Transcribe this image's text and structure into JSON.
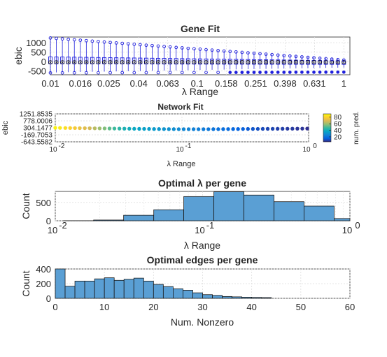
{
  "chart_data": [
    {
      "id": "gene_fit",
      "type": "box",
      "title": "Gene Fit",
      "xlabel": "λ Range",
      "ylabel": "ebic",
      "x_scale": "log",
      "xlim": [
        0.01,
        1.1
      ],
      "ylim": [
        -700,
        1300
      ],
      "x_ticks": [
        0.01,
        0.016,
        0.025,
        0.04,
        0.063,
        0.1,
        0.158,
        0.251,
        0.398,
        0.631,
        1
      ],
      "x_tick_labels": [
        "0.01",
        "0.016",
        "0.025",
        "0.04",
        "0.063",
        "0.1",
        "0.158",
        "0.251",
        "0.398",
        "0.631",
        "1"
      ],
      "y_ticks": [
        -500,
        0,
        500,
        1000
      ],
      "y_tick_labels": [
        "-500",
        "0",
        "500",
        "1000"
      ],
      "n_boxes": 50,
      "box_color": "#1f1fdc",
      "lambda_start": 0.01,
      "lambda_end": 1.0,
      "median_start": -40,
      "median_end": -30,
      "q1_start": -120,
      "q1_end": -150,
      "q3_start": 250,
      "q3_end": 40,
      "whisker_low_start": -580,
      "whisker_low_end": -320,
      "whisker_high_start": 1200,
      "whisker_high_end": 130,
      "outlier_high_start": 1250,
      "outlier_high_end": 80,
      "outlier_low_start": -600,
      "outlier_low_end": -560
    },
    {
      "id": "network_fit",
      "type": "scatter",
      "title": "Network Fit",
      "xlabel": "λ Range",
      "ylabel": "ebic",
      "x_scale": "log",
      "xlim": [
        0.01,
        1
      ],
      "ylim": [
        -643.5582,
        1251.8535
      ],
      "x_ticks": [
        0.01,
        0.1,
        1
      ],
      "x_tick_labels": [
        "10",
        "10",
        "10"
      ],
      "x_tick_exponents": [
        "-2",
        "-1",
        "0"
      ],
      "y_ticks": [
        -643.5582,
        -169.7053,
        304.1477,
        778.0006,
        1251.8535
      ],
      "y_tick_labels": [
        "-643.5582",
        "-169.7053",
        "304.1477",
        "778.0006",
        "1251.8535"
      ],
      "colorbar_label": "num. pred.",
      "colorbar_ticks": [
        20,
        40,
        60,
        80
      ],
      "colorbar_tick_labels": [
        "20",
        "40",
        "60",
        "80"
      ],
      "color_range": [
        5,
        90
      ],
      "x": [
        0.01,
        0.0109,
        0.012,
        0.0131,
        0.0143,
        0.0156,
        0.0171,
        0.0187,
        0.0205,
        0.0224,
        0.0245,
        0.0268,
        0.0293,
        0.0321,
        0.0351,
        0.0384,
        0.042,
        0.046,
        0.0503,
        0.055,
        0.0602,
        0.0659,
        0.0721,
        0.0788,
        0.0862,
        0.0943,
        0.1032,
        0.1129,
        0.1235,
        0.1351,
        0.1478,
        0.1617,
        0.1769,
        0.1935,
        0.2117,
        0.2316,
        0.2534,
        0.2772,
        0.3033,
        0.3318,
        0.363,
        0.3971,
        0.4344,
        0.4753,
        0.52,
        0.5689,
        0.6224,
        0.6809,
        0.7449,
        0.815,
        0.8916,
        0.9755
      ],
      "y": [
        304,
        300,
        296,
        292,
        288,
        284,
        280,
        276,
        272,
        268,
        264,
        260,
        256,
        252,
        248,
        244,
        240,
        236,
        232,
        228,
        224,
        222,
        220,
        218,
        216,
        214,
        212,
        212,
        212,
        212,
        213,
        214,
        215,
        216,
        218,
        220,
        222,
        224,
        226,
        228,
        230,
        232,
        234,
        236,
        238,
        240,
        242,
        244,
        246,
        248,
        250,
        252
      ],
      "c": [
        88,
        86,
        83,
        80,
        77,
        74,
        71,
        68,
        64,
        60,
        56,
        52,
        48,
        45,
        42,
        40,
        38,
        36,
        35,
        34,
        33,
        32,
        31,
        30,
        29,
        28,
        27,
        26,
        25,
        24,
        23,
        22,
        21,
        20,
        19,
        18,
        17,
        16,
        15,
        14,
        13,
        12,
        11,
        10,
        10,
        9,
        9,
        8,
        8,
        7,
        7,
        6
      ]
    },
    {
      "id": "optimal_lambda",
      "type": "histogram",
      "title": "Optimal λ per gene",
      "xlabel": "λ Range",
      "ylabel": "Count",
      "x_scale": "log",
      "xlim": [
        0.01,
        1
      ],
      "ylim": [
        0,
        800
      ],
      "x_ticks": [
        0.01,
        0.1,
        1
      ],
      "x_tick_labels": [
        "10",
        "10",
        "10"
      ],
      "x_tick_exponents": [
        "-2",
        "-1",
        "0"
      ],
      "y_ticks": [
        0,
        500
      ],
      "y_tick_labels": [
        "0",
        "500"
      ],
      "bin_edges": [
        0.0114,
        0.0182,
        0.0291,
        0.0466,
        0.0745,
        0.1193,
        0.1908,
        0.3052,
        0.4882,
        0.781,
        1.2493
      ],
      "counts": [
        2,
        20,
        150,
        300,
        660,
        790,
        700,
        520,
        400,
        60
      ]
    },
    {
      "id": "optimal_edges",
      "type": "histogram",
      "title": "Optimal edges per gene",
      "xlabel": "Num. Nonzero",
      "ylabel": "Count",
      "xlim": [
        0,
        60
      ],
      "ylim": [
        0,
        400
      ],
      "x_ticks": [
        0,
        10,
        20,
        30,
        40,
        50,
        60
      ],
      "x_tick_labels": [
        "0",
        "10",
        "20",
        "30",
        "40",
        "50",
        "60"
      ],
      "y_ticks": [
        0,
        200,
        400
      ],
      "y_tick_labels": [
        "0",
        "200",
        "400"
      ],
      "bin_width": 2,
      "bin_start": 0,
      "counts": [
        400,
        165,
        235,
        235,
        265,
        280,
        245,
        260,
        275,
        235,
        190,
        160,
        130,
        110,
        75,
        50,
        40,
        25,
        20,
        15,
        12,
        10
      ]
    }
  ],
  "colors": {
    "bar_fill": "#5a9fd4",
    "box_blue": "#1f1fdc",
    "colormap": [
      "#352a87",
      "#0363e1",
      "#1485d4",
      "#06a7c6",
      "#38b99e",
      "#92bf73",
      "#d9ba56",
      "#fcce2e",
      "#f9fb0e"
    ]
  }
}
